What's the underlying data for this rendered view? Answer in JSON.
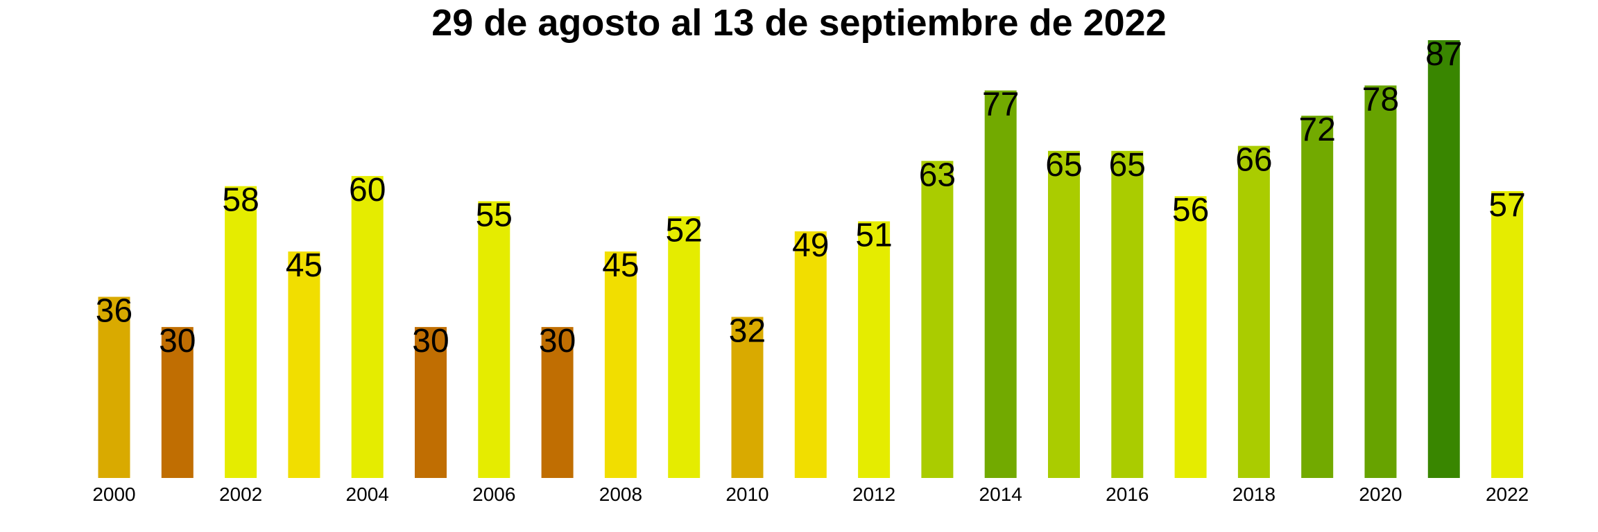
{
  "chart_data": {
    "type": "bar",
    "title": "29 de agosto al 13 de septiembre de 2022",
    "xlabel": "",
    "ylabel": "",
    "grid": false,
    "legend": "none",
    "categories": [
      "2000",
      "2001",
      "2002",
      "2003",
      "2004",
      "2005",
      "2006",
      "2007",
      "2008",
      "2009",
      "2010",
      "2011",
      "2012",
      "2013",
      "2014",
      "2015",
      "2016",
      "2017",
      "2018",
      "2019",
      "2020",
      "2021",
      "2022"
    ],
    "x_tick_labels": [
      "2000",
      "",
      "2002",
      "",
      "2004",
      "",
      "2006",
      "",
      "2008",
      "",
      "2010",
      "",
      "2012",
      "",
      "2014",
      "",
      "2016",
      "",
      "2018",
      "",
      "2020",
      "",
      "2022"
    ],
    "values": [
      36,
      30,
      58,
      45,
      60,
      30,
      55,
      30,
      45,
      52,
      32,
      49,
      51,
      63,
      77,
      65,
      65,
      56,
      66,
      72,
      78,
      87,
      57
    ],
    "data_labels": [
      "36",
      "30",
      "58",
      "45",
      "60",
      "30",
      "55",
      "30",
      "45",
      "52",
      "32",
      "49",
      "51",
      "63",
      "77",
      "65",
      "65",
      "56",
      "66",
      "72",
      "78",
      "87",
      "57"
    ],
    "colors": [
      "#d9aa00",
      "#c06e02",
      "#e5ec00",
      "#f1de00",
      "#e5ec00",
      "#c06e02",
      "#e5ec00",
      "#c06e02",
      "#f1de00",
      "#e5ec00",
      "#d9aa00",
      "#f1de00",
      "#e5ec00",
      "#aacc00",
      "#72aa00",
      "#aacc00",
      "#aacc00",
      "#e5ec00",
      "#aacc00",
      "#72aa00",
      "#67a300",
      "#398600",
      "#e5ec00"
    ],
    "ylim": [
      0,
      87
    ]
  }
}
